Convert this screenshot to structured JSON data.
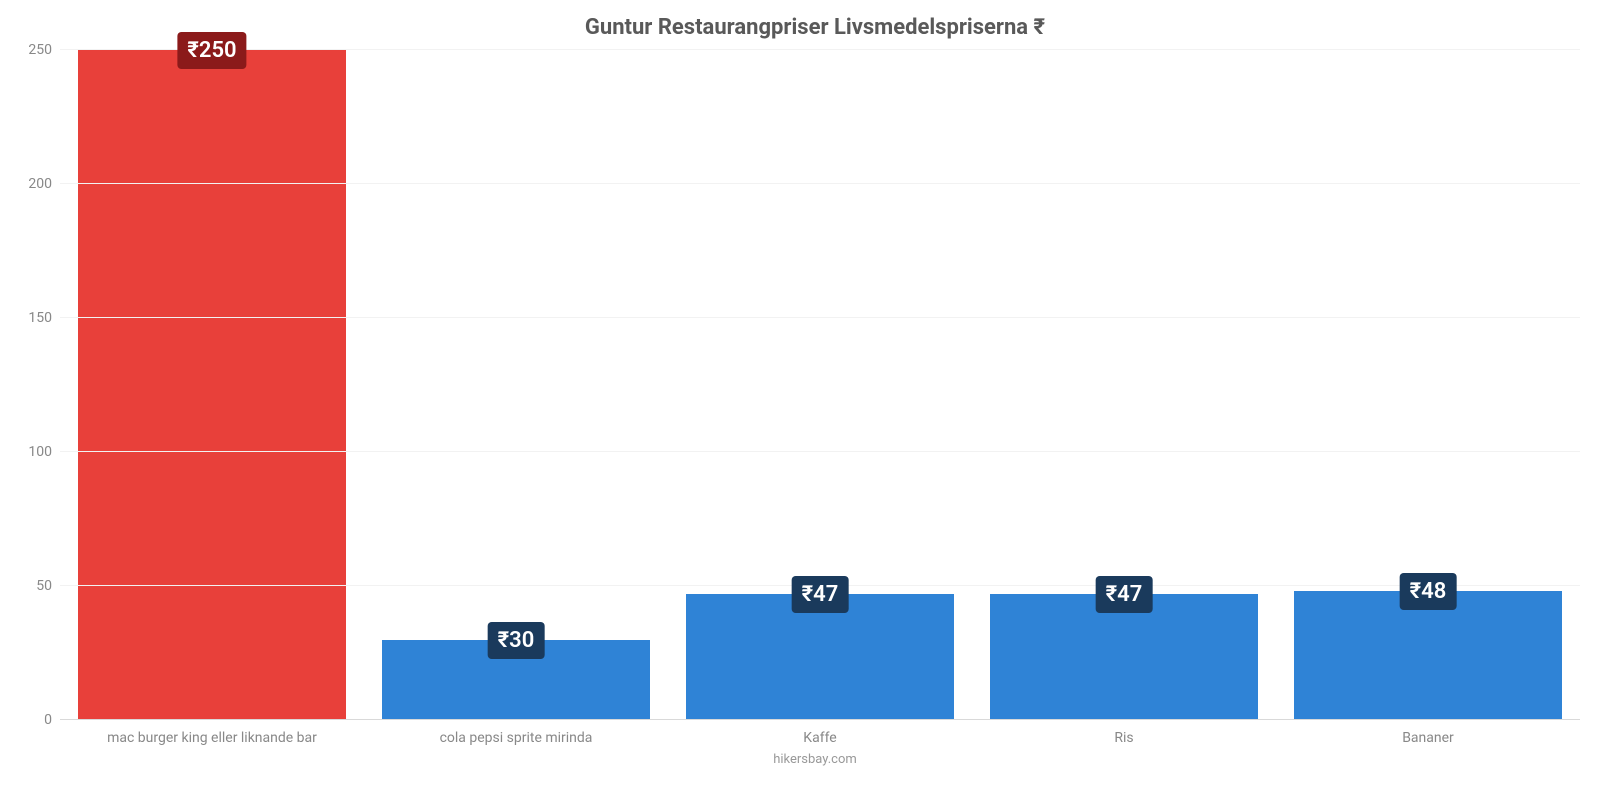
{
  "chart": {
    "type": "bar",
    "title": "Guntur Restaurangpriser Livsmedelspriserna ₹",
    "title_fontsize": 22,
    "title_color": "#595959",
    "attribution": "hikersbay.com",
    "attribution_color": "#999999",
    "attribution_fontsize": 13,
    "background_color": "#ffffff",
    "grid_color": "#f2f2f2",
    "axis_line_color": "#d9d9d9",
    "categories": [
      "mac burger king eller liknande bar",
      "cola pepsi sprite mirinda",
      "Kaffe",
      "Ris",
      "Bananer"
    ],
    "values": [
      250,
      30,
      47,
      47,
      48
    ],
    "value_labels": [
      "₹250",
      "₹30",
      "₹47",
      "₹47",
      "₹48"
    ],
    "bar_colors": [
      "#e8403a",
      "#2f83d6",
      "#2f83d6",
      "#2f83d6",
      "#2f83d6"
    ],
    "label_bg_colors": [
      "#8b1a1a",
      "#1a3a5c",
      "#1a3a5c",
      "#1a3a5c",
      "#1a3a5c"
    ],
    "label_fontsize": 22,
    "ylim": [
      0,
      250
    ],
    "yticks": [
      0,
      50,
      100,
      150,
      200,
      250
    ],
    "ytick_color": "#888888",
    "ytick_fontsize": 14,
    "xlabel_color": "#888888",
    "xlabel_fontsize": 14,
    "bar_width_pct": 88
  }
}
